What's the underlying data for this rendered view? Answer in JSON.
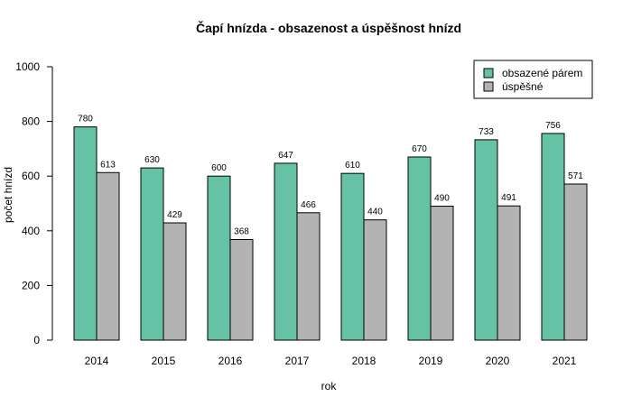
{
  "chart_data": {
    "type": "bar",
    "title": "Čapí hnízda - obsazenost a úspěšnost hnízd",
    "xlabel": "rok",
    "ylabel": "počet hnízd",
    "ylim": [
      0,
      1000
    ],
    "yticks": [
      0,
      200,
      400,
      600,
      800,
      1000
    ],
    "grid": false,
    "legend_position": "top-right",
    "categories": [
      "2014",
      "2015",
      "2016",
      "2017",
      "2018",
      "2019",
      "2020",
      "2021"
    ],
    "series": [
      {
        "name": "obsazené párem",
        "color": "#66c2a5",
        "values": [
          780,
          630,
          600,
          647,
          610,
          670,
          733,
          756
        ]
      },
      {
        "name": "úspěšné",
        "color": "#b3b3b3",
        "values": [
          613,
          429,
          368,
          466,
          440,
          490,
          491,
          571
        ]
      }
    ]
  }
}
